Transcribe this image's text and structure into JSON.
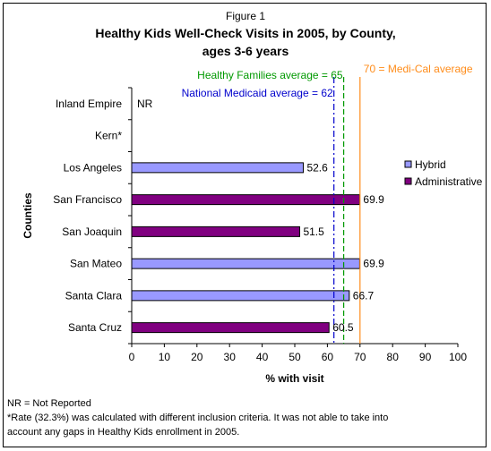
{
  "figure_label": "Figure 1",
  "title_line1": "Healthy Kids Well-Check Visits in 2005, by County,",
  "title_line2": "ages 3-6 years",
  "footnotes": [
    "NR = Not Reported",
    "*Rate (32.3%) was calculated with different inclusion criteria.  It was not able to take into",
    "account any gaps in Healthy Kids enrollment in 2005."
  ],
  "colors": {
    "hybrid": "#9999FF",
    "administrative": "#800080",
    "medi_cal": "#FF8C1A",
    "healthy_families": "#009900",
    "national_medicaid": "#0000CC"
  },
  "chart_data": {
    "type": "bar",
    "orientation": "horizontal",
    "ylabel": "Counties",
    "xlabel": "% with visit",
    "xlim": [
      0,
      100
    ],
    "xticks": [
      0,
      10,
      20,
      30,
      40,
      50,
      60,
      70,
      80,
      90,
      100
    ],
    "grid": false,
    "legend_position": "right",
    "categories": [
      "Inland Empire",
      "Kern*",
      "Los Angeles",
      "San Francisco",
      "San Joaquin",
      "San Mateo",
      "Santa Clara",
      "Santa Cruz"
    ],
    "series": [
      {
        "name": "Hybrid",
        "color": "#9999FF",
        "values": [
          null,
          null,
          52.6,
          null,
          null,
          69.9,
          66.7,
          null
        ]
      },
      {
        "name": "Administrative",
        "color": "#800080",
        "values": [
          null,
          null,
          null,
          69.9,
          51.5,
          null,
          null,
          60.5
        ]
      }
    ],
    "value_labels": [
      "NR",
      "",
      "52.6",
      "69.9",
      "51.5",
      "69.9",
      "66.7",
      "60.5"
    ],
    "reference_lines": [
      {
        "label": "70 = Medi-Cal average",
        "value": 70,
        "color": "#FF8C1A",
        "style": "solid"
      },
      {
        "label": "Healthy Families average = 65",
        "value": 65,
        "color": "#009900",
        "style": "dashed"
      },
      {
        "label": "National Medicaid average = 62",
        "value": 62,
        "color": "#0000CC",
        "style": "dashdot"
      }
    ]
  }
}
